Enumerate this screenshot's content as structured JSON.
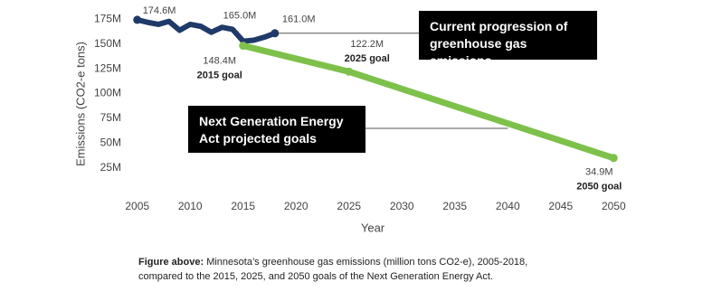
{
  "chart_data": {
    "type": "line",
    "y_label": "Emissions (CO2-e tons)",
    "x_label": "Year",
    "xlim": [
      2004,
      2051
    ],
    "xticks": [
      2005,
      2010,
      2015,
      2020,
      2025,
      2030,
      2035,
      2040,
      2045,
      2050
    ],
    "ylim": [
      0,
      180
    ],
    "yticks": [
      {
        "value": 25,
        "label": "25M"
      },
      {
        "value": 50,
        "label": "50M"
      },
      {
        "value": 75,
        "label": "75M"
      },
      {
        "value": 100,
        "label": "100M"
      },
      {
        "value": 125,
        "label": "125M"
      },
      {
        "value": 150,
        "label": "150M"
      },
      {
        "value": 175,
        "label": "175M"
      }
    ],
    "grid": false,
    "series": [
      {
        "name": "Current progression of greenhouse gas emissions",
        "color": "#1f3a68",
        "x": [
          2005,
          2006,
          2007,
          2008,
          2009,
          2010,
          2011,
          2012,
          2013,
          2014,
          2015,
          2016,
          2017,
          2018
        ],
        "values": [
          174.6,
          172,
          170,
          173,
          164,
          170,
          168,
          162,
          167,
          165.0,
          153,
          154,
          157,
          161.0
        ],
        "value_labels": [
          "174.6M",
          null,
          null,
          null,
          null,
          null,
          null,
          null,
          null,
          "165.0M",
          null,
          null,
          null,
          "161.0M"
        ]
      },
      {
        "name": "Next Generation Energy Act projected goals",
        "color": "#7dc14b",
        "x": [
          2015,
          2025,
          2050
        ],
        "values": [
          148.4,
          122.2,
          34.9
        ],
        "value_labels": [
          "148.4M",
          "122.2M",
          "34.9M"
        ],
        "point_labels": [
          "2015 goal",
          "2025 goal",
          "2050 goal"
        ]
      }
    ],
    "caption": {
      "bold": "Figure above:",
      "lines": [
        "Minnesota’s greenhouse gas emissions (million tons CO2-e), 2005-2018,",
        "compared to the 2015, 2025, and 2050 goals of the Next Generation Energy Act."
      ]
    }
  }
}
